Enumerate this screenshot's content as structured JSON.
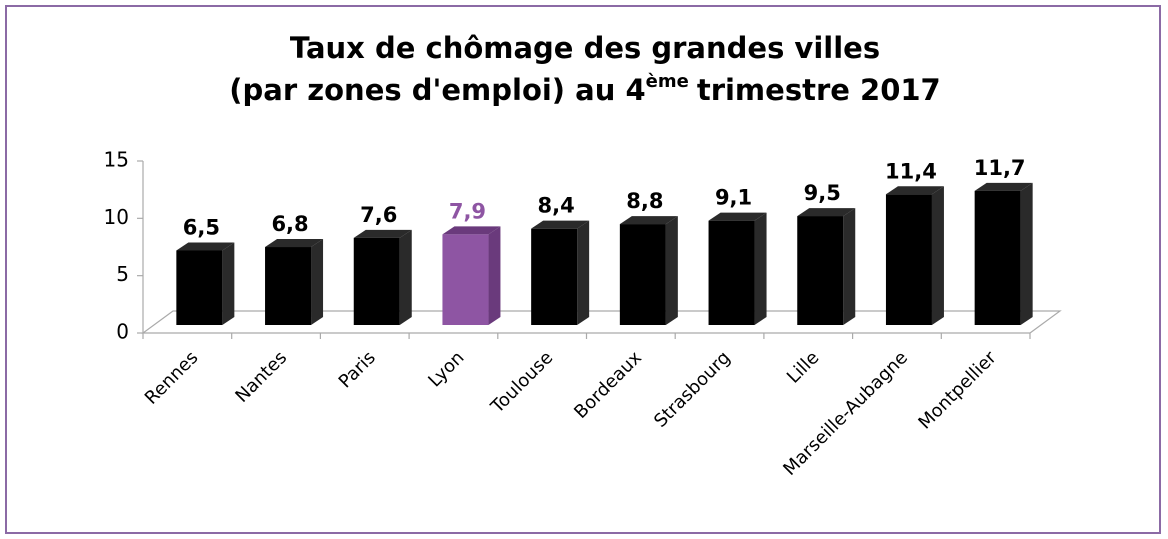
{
  "chart_data": {
    "type": "bar3d",
    "title": [
      "Taux de chômage des grandes villes",
      "(par zones d'emploi) au 4",
      "ème",
      "trimestre 2017"
    ],
    "categories": [
      "Rennes",
      "Nantes",
      "Paris",
      "Lyon",
      "Toulouse",
      "Bordeaux",
      "Strasbourg",
      "Lille",
      "Marseille-Aubagne",
      "Montpellier"
    ],
    "values": [
      6.5,
      6.8,
      7.6,
      7.9,
      8.4,
      8.8,
      9.1,
      9.5,
      11.4,
      11.7
    ],
    "value_labels": [
      "6,5",
      "6,8",
      "7,6",
      "7,9",
      "8,4",
      "8,8",
      "9,1",
      "9,5",
      "11,4",
      "11,7"
    ],
    "colors": [
      "#000000",
      "#000000",
      "#000000",
      "#8e55a3",
      "#000000",
      "#000000",
      "#000000",
      "#000000",
      "#000000",
      "#000000"
    ],
    "ylim": [
      0,
      15
    ],
    "yticks": [
      0,
      5,
      10,
      15
    ]
  }
}
